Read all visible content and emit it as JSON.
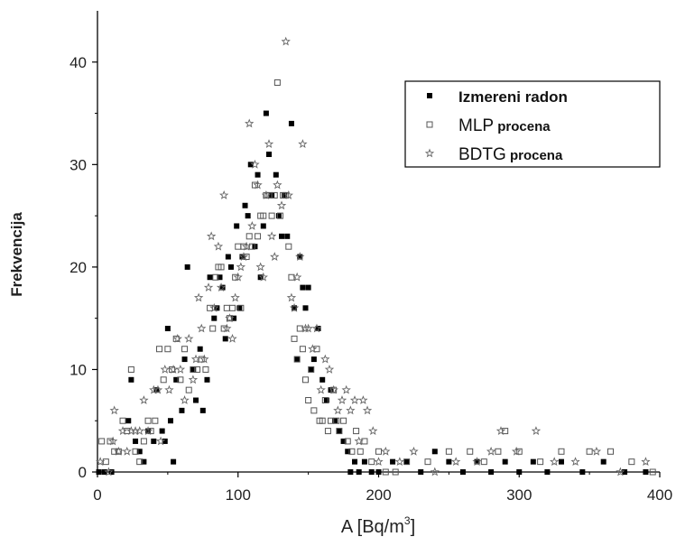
{
  "chart_data": {
    "type": "scatter",
    "xlabel": "A [Bq/m",
    "xlabel_sup": "3",
    "xlabel_end": "]",
    "ylabel": "Frekvencija",
    "xlim": [
      0,
      400
    ],
    "ylim": [
      0,
      45
    ],
    "x_ticks": [
      0,
      100,
      200,
      300,
      400
    ],
    "y_ticks": [
      0,
      10,
      20,
      30,
      40
    ],
    "grid": false,
    "legend_position": "top-right",
    "series": [
      {
        "name": "Izmereni radon",
        "name_suffix": "",
        "marker": "filled-square",
        "color": "#000000",
        "points": [
          [
            1,
            0
          ],
          [
            5,
            0
          ],
          [
            10,
            0
          ],
          [
            22,
            5
          ],
          [
            24,
            9
          ],
          [
            27,
            3
          ],
          [
            30,
            2
          ],
          [
            33,
            1
          ],
          [
            36,
            4
          ],
          [
            40,
            3
          ],
          [
            42,
            8
          ],
          [
            46,
            4
          ],
          [
            48,
            3
          ],
          [
            50,
            14
          ],
          [
            52,
            5
          ],
          [
            54,
            1
          ],
          [
            56,
            9
          ],
          [
            60,
            6
          ],
          [
            62,
            11
          ],
          [
            64,
            20
          ],
          [
            68,
            10
          ],
          [
            70,
            7
          ],
          [
            73,
            12
          ],
          [
            75,
            6
          ],
          [
            78,
            9
          ],
          [
            80,
            19
          ],
          [
            83,
            15
          ],
          [
            85,
            16
          ],
          [
            87,
            19
          ],
          [
            89,
            18
          ],
          [
            91,
            13
          ],
          [
            93,
            21
          ],
          [
            95,
            20
          ],
          [
            97,
            15
          ],
          [
            99,
            24
          ],
          [
            101,
            16
          ],
          [
            103,
            21
          ],
          [
            105,
            26
          ],
          [
            107,
            25
          ],
          [
            109,
            30
          ],
          [
            112,
            22
          ],
          [
            114,
            29
          ],
          [
            116,
            19
          ],
          [
            118,
            24
          ],
          [
            120,
            35
          ],
          [
            122,
            31
          ],
          [
            124,
            27
          ],
          [
            127,
            29
          ],
          [
            129,
            25
          ],
          [
            131,
            23
          ],
          [
            133,
            27
          ],
          [
            135,
            23
          ],
          [
            138,
            34
          ],
          [
            140,
            16
          ],
          [
            142,
            11
          ],
          [
            144,
            21
          ],
          [
            146,
            18
          ],
          [
            148,
            16
          ],
          [
            150,
            18
          ],
          [
            152,
            10
          ],
          [
            154,
            11
          ],
          [
            157,
            14
          ],
          [
            160,
            9
          ],
          [
            163,
            7
          ],
          [
            166,
            8
          ],
          [
            169,
            5
          ],
          [
            172,
            4
          ],
          [
            175,
            3
          ],
          [
            178,
            2
          ],
          [
            180,
            0
          ],
          [
            183,
            1
          ],
          [
            186,
            0
          ],
          [
            190,
            1
          ],
          [
            195,
            0
          ],
          [
            200,
            0
          ],
          [
            210,
            1
          ],
          [
            220,
            1
          ],
          [
            230,
            0
          ],
          [
            240,
            2
          ],
          [
            250,
            1
          ],
          [
            260,
            0
          ],
          [
            270,
            1
          ],
          [
            280,
            0
          ],
          [
            290,
            1
          ],
          [
            300,
            0
          ],
          [
            310,
            1
          ],
          [
            320,
            0
          ],
          [
            330,
            1
          ],
          [
            345,
            0
          ],
          [
            360,
            1
          ],
          [
            375,
            0
          ],
          [
            390,
            0
          ]
        ]
      },
      {
        "name": "MLP",
        "name_suffix": "procena",
        "marker": "open-square",
        "color": "#555555",
        "points": [
          [
            3,
            3
          ],
          [
            6,
            1
          ],
          [
            9,
            3
          ],
          [
            12,
            2
          ],
          [
            15,
            2
          ],
          [
            18,
            5
          ],
          [
            21,
            4
          ],
          [
            24,
            10
          ],
          [
            27,
            2
          ],
          [
            30,
            1
          ],
          [
            33,
            3
          ],
          [
            36,
            5
          ],
          [
            38,
            4
          ],
          [
            41,
            5
          ],
          [
            44,
            12
          ],
          [
            47,
            9
          ],
          [
            50,
            12
          ],
          [
            53,
            10
          ],
          [
            56,
            13
          ],
          [
            59,
            9
          ],
          [
            62,
            12
          ],
          [
            65,
            8
          ],
          [
            68,
            10
          ],
          [
            71,
            10
          ],
          [
            74,
            11
          ],
          [
            77,
            10
          ],
          [
            80,
            16
          ],
          [
            82,
            14
          ],
          [
            84,
            19
          ],
          [
            86,
            20
          ],
          [
            88,
            20
          ],
          [
            90,
            14
          ],
          [
            92,
            16
          ],
          [
            94,
            15
          ],
          [
            96,
            16
          ],
          [
            98,
            19
          ],
          [
            100,
            22
          ],
          [
            102,
            16
          ],
          [
            104,
            22
          ],
          [
            106,
            21
          ],
          [
            108,
            23
          ],
          [
            110,
            22
          ],
          [
            112,
            28
          ],
          [
            114,
            23
          ],
          [
            116,
            25
          ],
          [
            118,
            25
          ],
          [
            120,
            27
          ],
          [
            122,
            27
          ],
          [
            124,
            25
          ],
          [
            126,
            27
          ],
          [
            128,
            38
          ],
          [
            130,
            25
          ],
          [
            132,
            27
          ],
          [
            134,
            27
          ],
          [
            136,
            22
          ],
          [
            138,
            19
          ],
          [
            140,
            13
          ],
          [
            142,
            11
          ],
          [
            144,
            14
          ],
          [
            146,
            12
          ],
          [
            148,
            9
          ],
          [
            150,
            7
          ],
          [
            152,
            10
          ],
          [
            154,
            6
          ],
          [
            156,
            12
          ],
          [
            158,
            5
          ],
          [
            160,
            5
          ],
          [
            162,
            7
          ],
          [
            164,
            4
          ],
          [
            166,
            5
          ],
          [
            168,
            8
          ],
          [
            170,
            5
          ],
          [
            172,
            4
          ],
          [
            175,
            5
          ],
          [
            178,
            3
          ],
          [
            181,
            2
          ],
          [
            184,
            4
          ],
          [
            187,
            2
          ],
          [
            190,
            3
          ],
          [
            195,
            1
          ],
          [
            200,
            2
          ],
          [
            205,
            0
          ],
          [
            212,
            0
          ],
          [
            220,
            1
          ],
          [
            235,
            1
          ],
          [
            250,
            2
          ],
          [
            265,
            2
          ],
          [
            275,
            1
          ],
          [
            285,
            2
          ],
          [
            290,
            4
          ],
          [
            300,
            2
          ],
          [
            315,
            1
          ],
          [
            330,
            2
          ],
          [
            350,
            2
          ],
          [
            365,
            2
          ],
          [
            380,
            1
          ],
          [
            395,
            0
          ]
        ]
      },
      {
        "name": "BDTG",
        "name_suffix": "procena",
        "marker": "open-star",
        "color": "#666666",
        "points": [
          [
            2,
            1
          ],
          [
            8,
            0
          ],
          [
            11,
            3
          ],
          [
            12,
            6
          ],
          [
            15,
            2
          ],
          [
            18,
            4
          ],
          [
            21,
            2
          ],
          [
            24,
            4
          ],
          [
            27,
            4
          ],
          [
            30,
            4
          ],
          [
            33,
            7
          ],
          [
            36,
            4
          ],
          [
            40,
            8
          ],
          [
            43,
            8
          ],
          [
            45,
            3
          ],
          [
            48,
            10
          ],
          [
            51,
            8
          ],
          [
            54,
            10
          ],
          [
            57,
            13
          ],
          [
            59,
            10
          ],
          [
            62,
            7
          ],
          [
            65,
            13
          ],
          [
            68,
            9
          ],
          [
            70,
            11
          ],
          [
            72,
            17
          ],
          [
            74,
            14
          ],
          [
            76,
            11
          ],
          [
            79,
            18
          ],
          [
            81,
            23
          ],
          [
            83,
            16
          ],
          [
            86,
            22
          ],
          [
            88,
            18
          ],
          [
            90,
            27
          ],
          [
            92,
            14
          ],
          [
            94,
            15
          ],
          [
            96,
            13
          ],
          [
            98,
            17
          ],
          [
            100,
            19
          ],
          [
            102,
            20
          ],
          [
            104,
            21
          ],
          [
            106,
            22
          ],
          [
            108,
            34
          ],
          [
            110,
            24
          ],
          [
            112,
            30
          ],
          [
            114,
            28
          ],
          [
            116,
            20
          ],
          [
            118,
            19
          ],
          [
            120,
            27
          ],
          [
            122,
            32
          ],
          [
            124,
            23
          ],
          [
            126,
            21
          ],
          [
            128,
            28
          ],
          [
            131,
            26
          ],
          [
            134,
            42
          ],
          [
            136,
            27
          ],
          [
            138,
            17
          ],
          [
            140,
            16
          ],
          [
            142,
            19
          ],
          [
            144,
            21
          ],
          [
            146,
            32
          ],
          [
            148,
            14
          ],
          [
            150,
            14
          ],
          [
            153,
            12
          ],
          [
            156,
            14
          ],
          [
            159,
            8
          ],
          [
            162,
            11
          ],
          [
            165,
            10
          ],
          [
            168,
            8
          ],
          [
            171,
            6
          ],
          [
            174,
            7
          ],
          [
            177,
            8
          ],
          [
            180,
            6
          ],
          [
            183,
            7
          ],
          [
            186,
            3
          ],
          [
            189,
            7
          ],
          [
            192,
            6
          ],
          [
            196,
            4
          ],
          [
            200,
            1
          ],
          [
            205,
            2
          ],
          [
            215,
            1
          ],
          [
            225,
            2
          ],
          [
            240,
            0
          ],
          [
            255,
            1
          ],
          [
            270,
            1
          ],
          [
            280,
            2
          ],
          [
            287,
            4
          ],
          [
            298,
            2
          ],
          [
            312,
            4
          ],
          [
            325,
            1
          ],
          [
            340,
            1
          ],
          [
            355,
            2
          ],
          [
            372,
            0
          ],
          [
            390,
            1
          ]
        ]
      }
    ]
  }
}
